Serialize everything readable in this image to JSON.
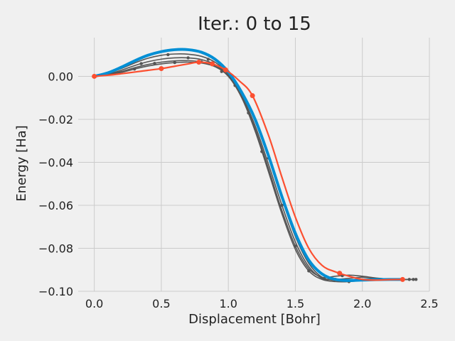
{
  "chart_data": {
    "type": "line",
    "title": "Iter.: 0 to 15",
    "xlabel": "Displacement [Bohr]",
    "ylabel": "Energy [Ha]",
    "xlim": [
      -0.12,
      2.5
    ],
    "ylim": [
      -0.1,
      0.018
    ],
    "xticks": [
      0.0,
      0.5,
      1.0,
      1.5,
      2.0,
      2.5
    ],
    "xtick_labels": [
      "0.0",
      "0.5",
      "1.0",
      "1.5",
      "2.0",
      "2.5"
    ],
    "yticks": [
      -0.1,
      -0.08,
      -0.06,
      -0.04,
      -0.02,
      0.0
    ],
    "ytick_labels": [
      "−0.10",
      "−0.08",
      "−0.06",
      "−0.04",
      "−0.02",
      "0.00"
    ],
    "grid": true,
    "colors": {
      "background": "#f0f0f0",
      "grid": "#cbcbcb",
      "initial": "#008fd5",
      "intermediate": "#555555",
      "final": "#fc4f30"
    },
    "series": [
      {
        "role": "initial",
        "x": [
          0.0,
          0.1,
          0.2,
          0.3,
          0.4,
          0.5,
          0.6,
          0.7,
          0.8,
          0.9,
          1.0,
          1.1,
          1.2,
          1.3,
          1.4,
          1.5,
          1.6,
          1.7,
          1.8,
          1.9,
          2.0,
          2.1,
          2.2,
          2.3
        ],
        "y": [
          0.0,
          0.0016,
          0.0042,
          0.0072,
          0.0098,
          0.0115,
          0.0124,
          0.0124,
          0.0112,
          0.008,
          0.002,
          -0.0075,
          -0.02,
          -0.037,
          -0.056,
          -0.073,
          -0.0855,
          -0.092,
          -0.0945,
          -0.095,
          -0.0948,
          -0.0946,
          -0.0945,
          -0.0945
        ],
        "markers": []
      },
      {
        "role": "intermediate",
        "x": [
          0.0,
          0.1,
          0.2,
          0.3,
          0.4,
          0.5,
          0.6,
          0.7,
          0.8,
          0.9,
          1.0,
          1.1,
          1.2,
          1.3,
          1.4,
          1.5,
          1.6,
          1.7,
          1.8,
          1.9,
          2.0,
          2.1,
          2.2,
          2.3
        ],
        "y": [
          0.0,
          0.0014,
          0.0036,
          0.0062,
          0.0084,
          0.0098,
          0.0104,
          0.0103,
          0.0093,
          0.0066,
          0.0012,
          -0.008,
          -0.021,
          -0.038,
          -0.057,
          -0.0745,
          -0.087,
          -0.0935,
          -0.095,
          -0.0952,
          -0.095,
          -0.0947,
          -0.0945,
          -0.0945
        ],
        "markers": [
          0.0,
          0.55,
          0.85,
          1.3,
          1.75,
          2.3
        ]
      },
      {
        "role": "intermediate",
        "x": [
          0.0,
          0.1,
          0.2,
          0.3,
          0.4,
          0.5,
          0.6,
          0.7,
          0.8,
          0.9,
          1.0,
          1.1,
          1.2,
          1.3,
          1.4,
          1.5,
          1.6,
          1.7,
          1.8,
          1.9,
          2.0,
          2.1,
          2.2,
          2.3,
          2.38
        ],
        "y": [
          0.0,
          0.001,
          0.0028,
          0.005,
          0.0068,
          0.008,
          0.0086,
          0.0086,
          0.0078,
          0.0055,
          0.0005,
          -0.009,
          -0.023,
          -0.041,
          -0.06,
          -0.077,
          -0.0885,
          -0.094,
          -0.0945,
          -0.094,
          -0.0935,
          -0.094,
          -0.0943,
          -0.0945,
          -0.0945
        ],
        "markers": [
          0.0,
          0.35,
          0.7,
          1.05,
          1.4,
          1.8,
          2.38
        ]
      },
      {
        "role": "intermediate",
        "x": [
          0.0,
          0.1,
          0.2,
          0.3,
          0.4,
          0.5,
          0.6,
          0.7,
          0.8,
          0.9,
          1.0,
          1.1,
          1.2,
          1.3,
          1.4,
          1.5,
          1.6,
          1.7,
          1.8,
          1.9,
          2.0,
          2.1,
          2.2,
          2.3,
          2.35
        ],
        "y": [
          0.0,
          0.0008,
          0.0022,
          0.004,
          0.0055,
          0.0066,
          0.0072,
          0.0073,
          0.0067,
          0.0048,
          0.0002,
          -0.0095,
          -0.0245,
          -0.043,
          -0.0625,
          -0.079,
          -0.0895,
          -0.0935,
          -0.093,
          -0.0925,
          -0.093,
          -0.0938,
          -0.0943,
          -0.0945,
          -0.0945
        ],
        "markers": [
          0.0,
          0.45,
          0.8,
          1.15,
          1.5,
          1.85,
          2.35
        ]
      },
      {
        "role": "intermediate",
        "x": [
          0.0,
          0.1,
          0.2,
          0.3,
          0.4,
          0.5,
          0.6,
          0.7,
          0.8,
          0.9,
          1.0,
          1.1,
          1.2,
          1.3,
          1.4,
          1.5,
          1.6,
          1.7,
          1.8,
          1.9,
          2.0,
          2.1,
          2.2,
          2.3,
          2.4
        ],
        "y": [
          0.0,
          0.0006,
          0.0018,
          0.0034,
          0.0048,
          0.0058,
          0.0064,
          0.0066,
          0.0062,
          0.0045,
          0.0,
          -0.01,
          -0.0255,
          -0.0445,
          -0.064,
          -0.0805,
          -0.0905,
          -0.0945,
          -0.0955,
          -0.0955,
          -0.095,
          -0.0947,
          -0.0945,
          -0.0945,
          -0.0945
        ],
        "markers": [
          0.0,
          0.3,
          0.6,
          0.95,
          1.25,
          1.6,
          1.9,
          2.4
        ]
      },
      {
        "role": "final",
        "x": [
          0.0,
          0.1,
          0.2,
          0.3,
          0.4,
          0.5,
          0.6,
          0.7,
          0.78,
          0.88,
          0.98,
          1.08,
          1.18,
          1.3,
          1.4,
          1.5,
          1.6,
          1.7,
          1.8,
          1.9,
          2.0,
          2.1,
          2.2,
          2.3
        ],
        "y": [
          0.0,
          0.0005,
          0.0012,
          0.002,
          0.0028,
          0.0036,
          0.0047,
          0.0058,
          0.0066,
          0.0058,
          0.003,
          -0.002,
          -0.009,
          -0.0275,
          -0.047,
          -0.0655,
          -0.08,
          -0.088,
          -0.091,
          -0.093,
          -0.0945,
          -0.0948,
          -0.0946,
          -0.0945
        ],
        "markers": [
          0.0,
          0.5,
          0.78,
          0.88,
          0.98,
          1.18,
          1.83,
          2.3
        ]
      }
    ]
  }
}
